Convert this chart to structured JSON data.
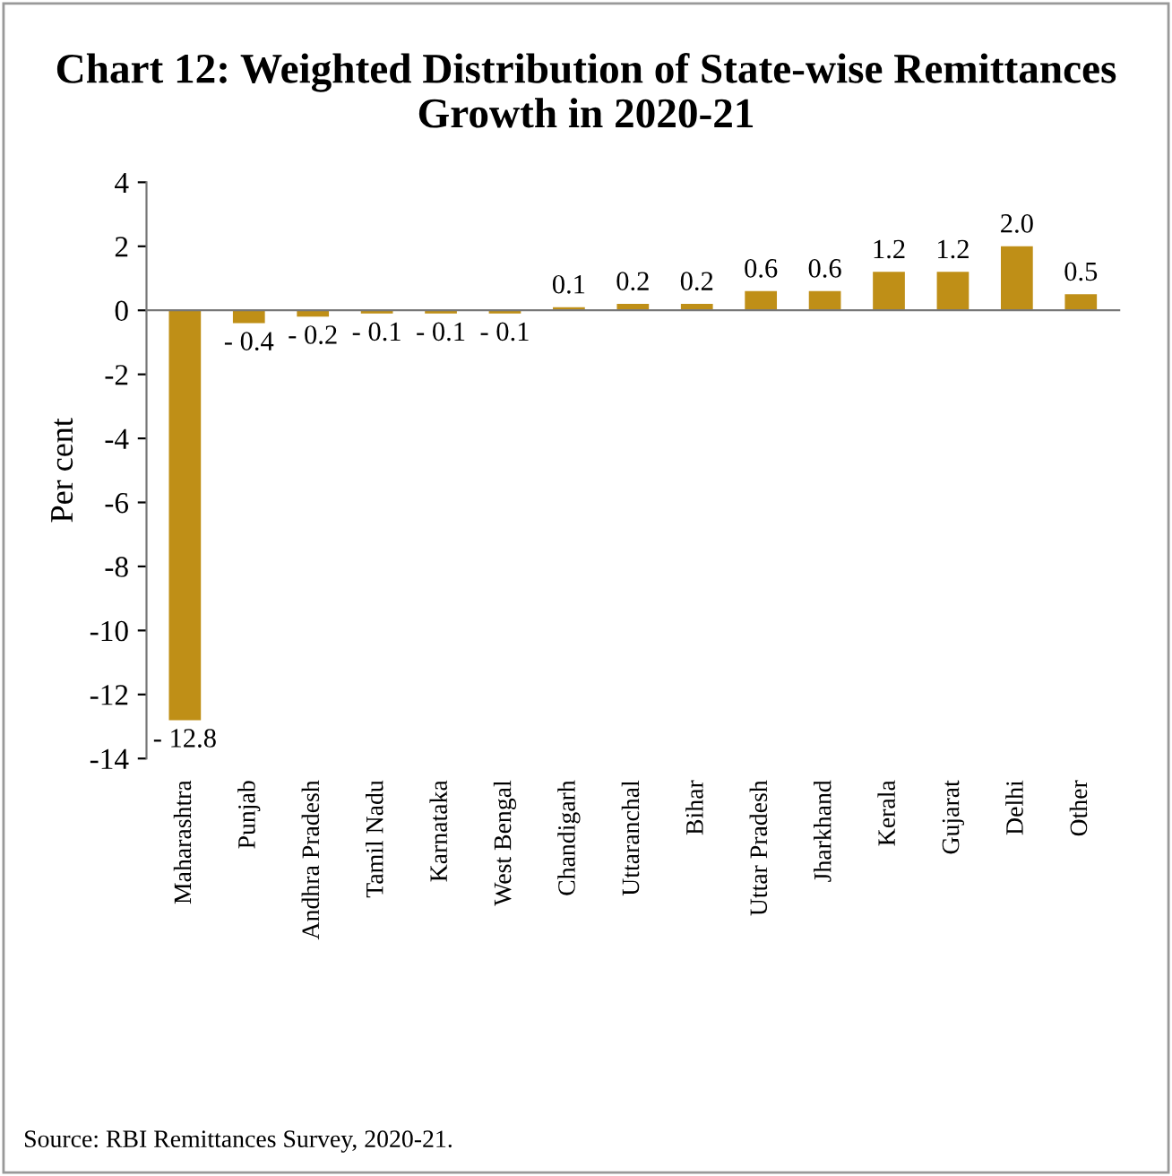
{
  "chart_data": {
    "type": "bar",
    "title": "Chart 12: Weighted Distribution of State-wise Remittances Growth in 2020-21",
    "ylabel": "Per cent",
    "categories": [
      "Maharashtra",
      "Punjab",
      "Andhra Pradesh",
      "Tamil Nadu",
      "Karnataka",
      "West Bengal",
      "Chandigarh",
      "Uttaranchal",
      "Bihar",
      "Uttar Pradesh",
      "Jharkhand",
      "Kerala",
      "Gujarat",
      "Delhi",
      "Other"
    ],
    "values": [
      -12.8,
      -0.4,
      -0.2,
      -0.1,
      -0.1,
      -0.1,
      0.1,
      0.2,
      0.2,
      0.6,
      0.6,
      1.2,
      1.2,
      2.0,
      0.5
    ],
    "value_labels": [
      "- 12.8",
      "- 0.4",
      "- 0.2",
      "- 0.1",
      "- 0.1",
      "- 0.1",
      "0.1",
      "0.2",
      "0.2",
      "0.6",
      "0.6",
      "1.2",
      "1.2",
      "2.0",
      "0.5"
    ],
    "color": "#bf8f17",
    "ylim": [
      -14,
      4
    ],
    "yticks": [
      {
        "value": -14,
        "label": "-14"
      },
      {
        "value": -12,
        "label": "-12"
      },
      {
        "value": -10,
        "label": "-10"
      },
      {
        "value": -8,
        "label": "-8"
      },
      {
        "value": -6,
        "label": "-6"
      },
      {
        "value": -4,
        "label": "-4"
      },
      {
        "value": -2,
        "label": "-2"
      },
      0,
      2,
      4
    ],
    "legend": false,
    "annotations": [
      "Source: RBI Remittances Survey, 2020-21."
    ]
  }
}
